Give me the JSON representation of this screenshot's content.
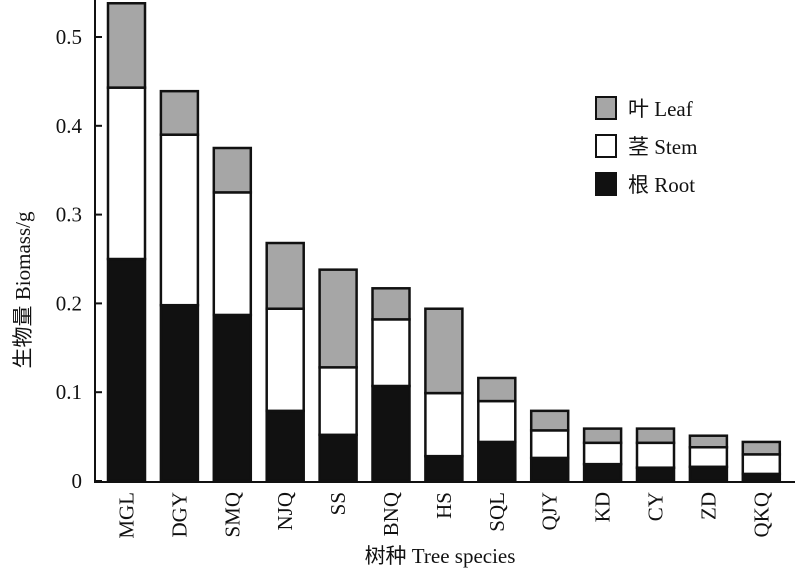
{
  "chart_data": {
    "type": "bar",
    "stacked": true,
    "title": "",
    "xlabel": "树种 Tree species",
    "ylabel": "生物量 Biomass/g",
    "ylim": [
      0,
      0.54
    ],
    "yticks": [
      0,
      0.1,
      0.2,
      0.3,
      0.4,
      0.5
    ],
    "ytick_labels": [
      "0",
      "0.1",
      "0.2",
      "0.3",
      "0.4",
      "0.5"
    ],
    "categories": [
      "MGL",
      "DGY",
      "SMQ",
      "NJQ",
      "SS",
      "BNQ",
      "HS",
      "SQL",
      "QJY",
      "KD",
      "CY",
      "ZD",
      "QKQ"
    ],
    "series": [
      {
        "name": "根 Root",
        "color": "#111111",
        "values": [
          0.25,
          0.198,
          0.187,
          0.079,
          0.052,
          0.107,
          0.028,
          0.044,
          0.026,
          0.019,
          0.015,
          0.016,
          0.008
        ]
      },
      {
        "name": "茎 Stem",
        "color": "#ffffff",
        "values": [
          0.193,
          0.192,
          0.138,
          0.115,
          0.076,
          0.075,
          0.071,
          0.046,
          0.031,
          0.024,
          0.028,
          0.022,
          0.022
        ]
      },
      {
        "name": "叶 Leaf",
        "color": "#a6a6a6",
        "values": [
          0.095,
          0.049,
          0.05,
          0.074,
          0.11,
          0.035,
          0.095,
          0.026,
          0.022,
          0.016,
          0.016,
          0.013,
          0.014
        ]
      }
    ],
    "legend": {
      "position": "top-right",
      "order": [
        "叶 Leaf",
        "茎 Stem",
        "根 Root"
      ]
    },
    "grid": false
  }
}
